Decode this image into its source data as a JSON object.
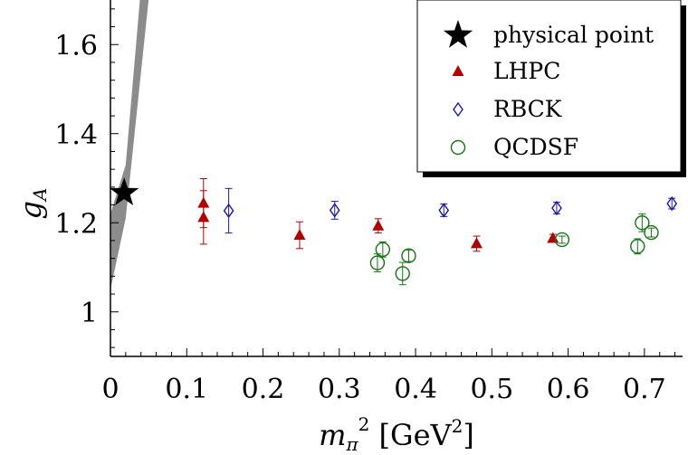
{
  "chart_data": {
    "type": "scatter",
    "xlabel": {
      "main": "m",
      "sub": "π",
      "sup": "2",
      "unit_open": " [GeV",
      "unit_sup": "2",
      "unit_close": "]"
    },
    "ylabel": {
      "main": "g",
      "sub": "A"
    },
    "xlim": [
      0,
      0.75
    ],
    "ylim": [
      0.9,
      1.7
    ],
    "x_ticks": [
      {
        "value": 0,
        "label": "0"
      },
      {
        "value": 0.1,
        "label": "0.1"
      },
      {
        "value": 0.2,
        "label": "0.2"
      },
      {
        "value": 0.3,
        "label": "0.3"
      },
      {
        "value": 0.4,
        "label": "0.4"
      },
      {
        "value": 0.5,
        "label": "0.5"
      },
      {
        "value": 0.6,
        "label": "0.6"
      },
      {
        "value": 0.7,
        "label": "0.7"
      }
    ],
    "y_ticks": [
      {
        "value": 1.0,
        "label": "1"
      },
      {
        "value": 1.2,
        "label": "1.2"
      },
      {
        "value": 1.4,
        "label": "1.4"
      },
      {
        "value": 1.6,
        "label": "1.6"
      }
    ],
    "legend_position": "top-right",
    "band": {
      "color": "#8c8c8c",
      "lower": [
        [
          0.0,
          1.05
        ],
        [
          0.02,
          1.21
        ],
        [
          0.05,
          1.7
        ]
      ],
      "upper": [
        [
          0.0,
          1.22
        ],
        [
          0.02,
          1.33
        ],
        [
          0.0386,
          1.7
        ]
      ]
    },
    "series": [
      {
        "name": "physical point",
        "marker": "star",
        "color": "#000000",
        "points": [
          {
            "x": 0.018,
            "y": 1.267
          }
        ]
      },
      {
        "name": "LHPC",
        "marker": "triangle",
        "color": "#b30000",
        "points": [
          {
            "x": 0.122,
            "y": 1.244,
            "err": 0.055
          },
          {
            "x": 0.122,
            "y": 1.212,
            "err": 0.06
          },
          {
            "x": 0.248,
            "y": 1.172,
            "err": 0.03
          },
          {
            "x": 0.351,
            "y": 1.193,
            "err": 0.016
          },
          {
            "x": 0.48,
            "y": 1.153,
            "err": 0.017
          },
          {
            "x": 0.58,
            "y": 1.165,
            "err": 0.009
          }
        ]
      },
      {
        "name": "RBCK",
        "marker": "diamond",
        "color": "#1a1aaa",
        "points": [
          {
            "x": 0.155,
            "y": 1.227,
            "err": 0.05
          },
          {
            "x": 0.294,
            "y": 1.228,
            "err": 0.02
          },
          {
            "x": 0.437,
            "y": 1.228,
            "err": 0.014
          },
          {
            "x": 0.585,
            "y": 1.233,
            "err": 0.013
          },
          {
            "x": 0.736,
            "y": 1.243,
            "err": 0.012
          }
        ]
      },
      {
        "name": "QCDSF",
        "marker": "circle",
        "color": "#127512",
        "points": [
          {
            "x": 0.357,
            "y": 1.14,
            "err": 0.017
          },
          {
            "x": 0.35,
            "y": 1.11,
            "err": 0.02
          },
          {
            "x": 0.383,
            "y": 1.086,
            "err": 0.025
          },
          {
            "x": 0.391,
            "y": 1.126,
            "err": 0.013
          },
          {
            "x": 0.592,
            "y": 1.162,
            "err": 0.008
          },
          {
            "x": 0.697,
            "y": 1.2,
            "err": 0.02
          },
          {
            "x": 0.691,
            "y": 1.147,
            "err": 0.017
          },
          {
            "x": 0.709,
            "y": 1.178,
            "err": 0.01
          }
        ]
      }
    ]
  }
}
